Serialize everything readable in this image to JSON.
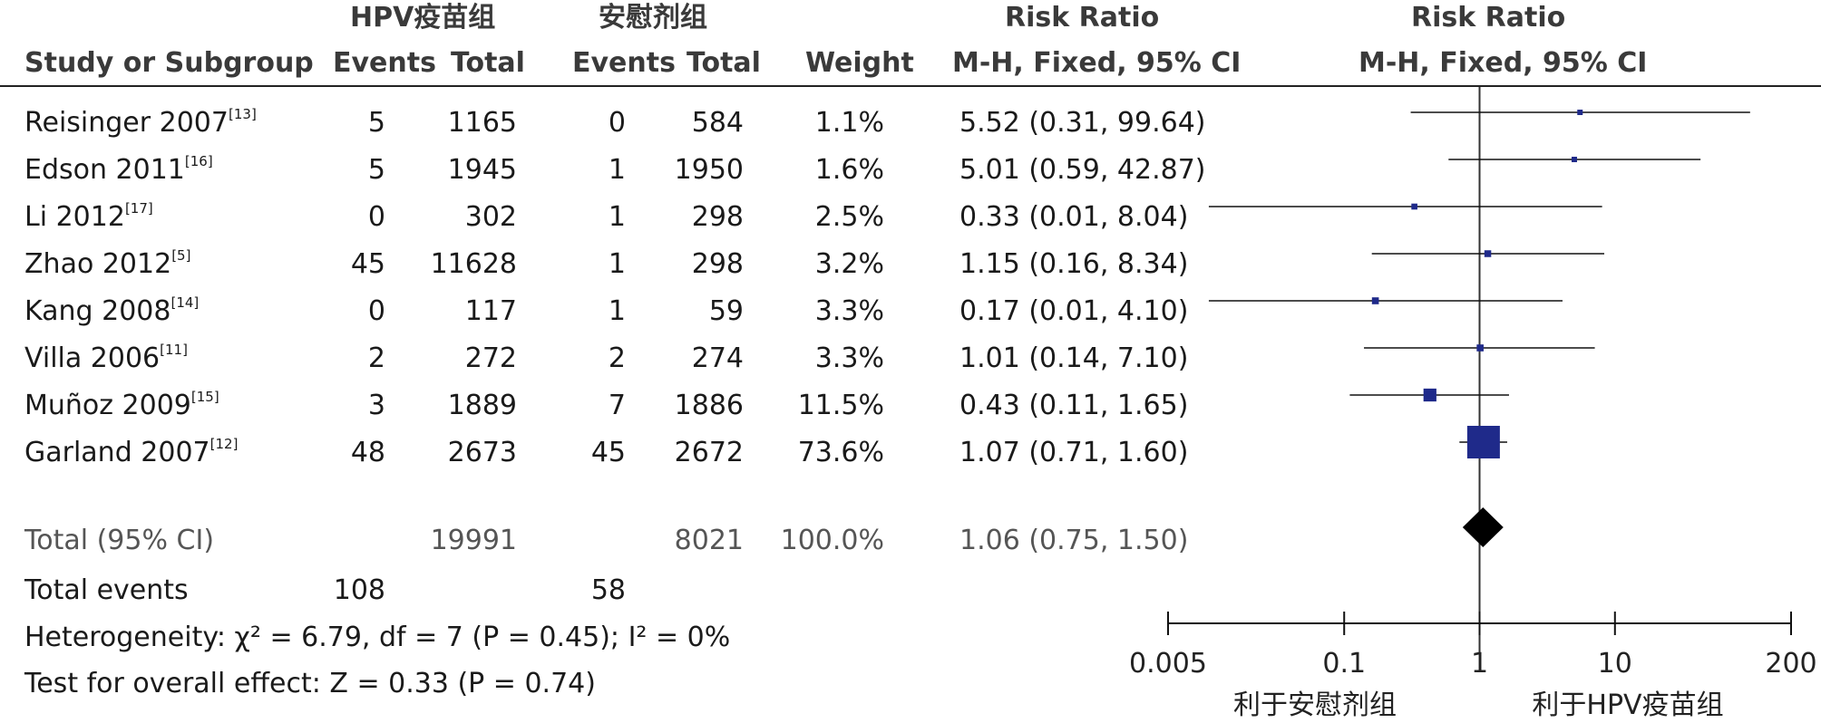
{
  "header": {
    "group1": "HPV疫苗组",
    "group2": "安慰剂组",
    "rr_title": "Risk Ratio",
    "rr_plot_title": "Risk Ratio",
    "study_col": "Study or Subgroup",
    "events1": "Events",
    "total1": "Total",
    "events2": "Events",
    "total2": "Total",
    "weight": "Weight",
    "method": "M-H, Fixed, 95% CI",
    "plot_method": "M-H, Fixed, 95% CI"
  },
  "rows": [
    {
      "study": "Reisinger 2007",
      "ref": "[13]",
      "e1": "5",
      "n1": "1165",
      "e2": "0",
      "n2": "584",
      "weight": "1.1%",
      "ci": "5.52 (0.31, 99.64)"
    },
    {
      "study": "Edson 2011",
      "ref": "[16]",
      "e1": "5",
      "n1": "1945",
      "e2": "1",
      "n2": "1950",
      "weight": "1.6%",
      "ci": "5.01 (0.59, 42.87)"
    },
    {
      "study": "Li 2012",
      "ref": "[17]",
      "e1": "0",
      "n1": "302",
      "e2": "1",
      "n2": "298",
      "weight": "2.5%",
      "ci": "0.33 (0.01, 8.04)"
    },
    {
      "study": "Zhao 2012",
      "ref": "[5]",
      "e1": "45",
      "n1": "11628",
      "e2": "1",
      "n2": "298",
      "weight": "3.2%",
      "ci": "1.15 (0.16, 8.34)"
    },
    {
      "study": "Kang 2008",
      "ref": "[14]",
      "e1": "0",
      "n1": "117",
      "e2": "1",
      "n2": "59",
      "weight": "3.3%",
      "ci": "0.17 (0.01, 4.10)"
    },
    {
      "study": "Villa 2006",
      "ref": "[11]",
      "e1": "2",
      "n1": "272",
      "e2": "2",
      "n2": "274",
      "weight": "3.3%",
      "ci": "1.01 (0.14, 7.10)"
    },
    {
      "study": "Muñoz 2009",
      "ref": "[15]",
      "e1": "3",
      "n1": "1889",
      "e2": "7",
      "n2": "1886",
      "weight": "11.5%",
      "ci": "0.43 (0.11, 1.65)"
    },
    {
      "study": "Garland 2007",
      "ref": "[12]",
      "e1": "48",
      "n1": "2673",
      "e2": "45",
      "n2": "2672",
      "weight": "73.6%",
      "ci": "1.07 (0.71, 1.60)"
    }
  ],
  "total": {
    "label": "Total (95% CI)",
    "n1": "19991",
    "n2": "8021",
    "weight": "100.0%",
    "ci": "1.06 (0.75, 1.50)"
  },
  "total_events": {
    "label": "Total events",
    "e1": "108",
    "e2": "58"
  },
  "heterogeneity": "Heterogeneity: χ² = 6.79, df = 7 (P = 0.45); I² = 0%",
  "overall_effect": "Test for overall effect: Z = 0.33 (P = 0.74)",
  "axis": {
    "ticks": [
      "0.005",
      "0.1",
      "1",
      "10",
      "200"
    ],
    "favours_left": "利于安慰剂组",
    "favours_right": "利于HPV疫苗组"
  },
  "chart_data": {
    "type": "forest",
    "scale": "log",
    "xlim": [
      0.005,
      200
    ],
    "reference": 1,
    "marker_color": "#1f2a8a",
    "studies": [
      {
        "name": "Reisinger 2007",
        "rr": 5.52,
        "lo": 0.31,
        "hi": 99.64,
        "weight": 1.1
      },
      {
        "name": "Edson 2011",
        "rr": 5.01,
        "lo": 0.59,
        "hi": 42.87,
        "weight": 1.6
      },
      {
        "name": "Li 2012",
        "rr": 0.33,
        "lo": 0.01,
        "hi": 8.04,
        "weight": 2.5
      },
      {
        "name": "Zhao 2012",
        "rr": 1.15,
        "lo": 0.16,
        "hi": 8.34,
        "weight": 3.2
      },
      {
        "name": "Kang 2008",
        "rr": 0.17,
        "lo": 0.01,
        "hi": 4.1,
        "weight": 3.3
      },
      {
        "name": "Villa 2006",
        "rr": 1.01,
        "lo": 0.14,
        "hi": 7.1,
        "weight": 3.3
      },
      {
        "name": "Muñoz 2009",
        "rr": 0.43,
        "lo": 0.11,
        "hi": 1.65,
        "weight": 11.5
      },
      {
        "name": "Garland 2007",
        "rr": 1.07,
        "lo": 0.71,
        "hi": 1.6,
        "weight": 73.6
      }
    ],
    "pooled": {
      "rr": 1.06,
      "lo": 0.75,
      "hi": 1.5
    }
  }
}
